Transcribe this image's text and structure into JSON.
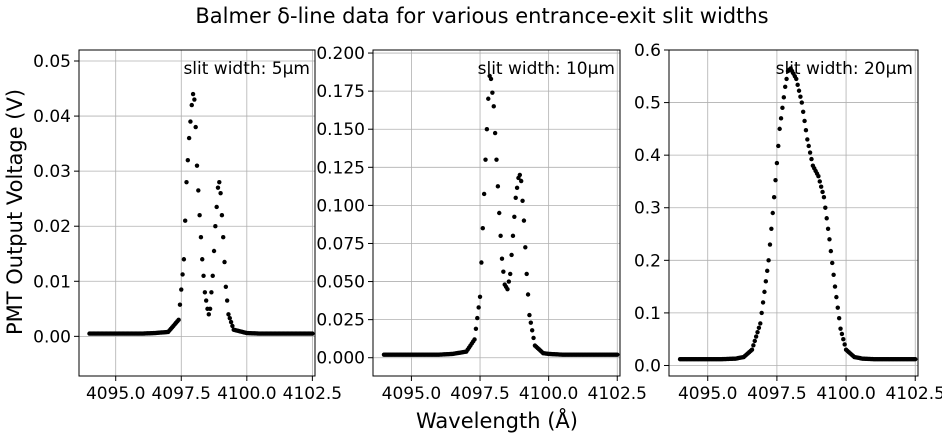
{
  "figure": {
    "title": "Balmer δ-line data for various entrance-exit slit widths",
    "xlabel": "Wavelength (Å)",
    "ylabel": "PMT Output Voltage (V)"
  },
  "colors": {
    "marker": "#000000",
    "grid": "#b0b0b0",
    "axes": "#000000"
  },
  "chart_data": [
    {
      "type": "scatter",
      "annotation": "slit width: 5μm",
      "xlim": [
        4093.6,
        4102.6
      ],
      "ylim": [
        -0.0072,
        0.052
      ],
      "xticks": [
        4095.0,
        4097.5,
        4100.0,
        4102.5
      ],
      "xtick_labels": [
        "4095.0",
        "4097.5",
        "4100.0",
        "4102.5"
      ],
      "yticks": [
        0.0,
        0.01,
        0.02,
        0.03,
        0.04,
        0.05
      ],
      "ytick_labels": [
        "0.00",
        "0.01",
        "0.02",
        "0.03",
        "0.04",
        "0.05"
      ],
      "grid": true,
      "series": [
        {
          "x": [
            4094.0,
            4094.5,
            4095.0,
            4095.5,
            4096.0,
            4096.5,
            4097.0,
            4097.4,
            4097.6,
            4097.7,
            4097.8,
            4097.9,
            4097.95,
            4098.0,
            4098.05,
            4098.1,
            4098.2,
            4098.3,
            4098.4,
            4098.5,
            4098.55,
            4098.6,
            4098.7,
            4098.8,
            4098.9,
            4098.95,
            4099.0,
            4099.1,
            4099.2,
            4099.3,
            4099.5,
            4100.0,
            4100.5,
            4101.0,
            4101.5,
            4102.0,
            4102.5
          ],
          "y": [
            0.0005,
            0.0005,
            0.0005,
            0.0005,
            0.0005,
            0.0006,
            0.0008,
            0.003,
            0.014,
            0.028,
            0.036,
            0.042,
            0.044,
            0.043,
            0.038,
            0.031,
            0.022,
            0.014,
            0.008,
            0.005,
            0.004,
            0.005,
            0.011,
            0.02,
            0.027,
            0.028,
            0.026,
            0.018,
            0.009,
            0.004,
            0.0012,
            0.0006,
            0.0005,
            0.0005,
            0.0005,
            0.0005,
            0.0005
          ]
        }
      ]
    },
    {
      "type": "scatter",
      "annotation": "slit width: 10μm",
      "xlim": [
        4093.6,
        4102.6
      ],
      "ylim": [
        -0.012,
        0.202
      ],
      "xticks": [
        4095.0,
        4097.5,
        4100.0,
        4102.5
      ],
      "xtick_labels": [
        "4095.0",
        "4097.5",
        "4100.0",
        "4102.5"
      ],
      "yticks": [
        0.0,
        0.025,
        0.05,
        0.075,
        0.1,
        0.125,
        0.15,
        0.175,
        0.2
      ],
      "ytick_labels": [
        "0.000",
        "0.025",
        "0.050",
        "0.075",
        "0.100",
        "0.125",
        "0.150",
        "0.175",
        "0.200"
      ],
      "grid": true,
      "series": [
        {
          "x": [
            4094.0,
            4094.5,
            4095.0,
            4095.5,
            4096.0,
            4096.5,
            4097.0,
            4097.3,
            4097.5,
            4097.6,
            4097.7,
            4097.8,
            4097.85,
            4097.9,
            4098.0,
            4098.1,
            4098.2,
            4098.3,
            4098.4,
            4098.5,
            4098.6,
            4098.7,
            4098.8,
            4098.9,
            4098.95,
            4099.0,
            4099.1,
            4099.2,
            4099.3,
            4099.5,
            4099.8,
            4100.0,
            4100.5,
            4101.0,
            4101.5,
            4102.0,
            4102.5
          ],
          "y": [
            0.002,
            0.002,
            0.002,
            0.002,
            0.002,
            0.0025,
            0.004,
            0.012,
            0.04,
            0.085,
            0.13,
            0.17,
            0.185,
            0.183,
            0.165,
            0.13,
            0.095,
            0.065,
            0.048,
            0.045,
            0.055,
            0.08,
            0.105,
            0.118,
            0.12,
            0.116,
            0.09,
            0.055,
            0.028,
            0.008,
            0.003,
            0.0025,
            0.002,
            0.002,
            0.002,
            0.002,
            0.002
          ]
        }
      ]
    },
    {
      "type": "scatter",
      "annotation": "slit width: 20μm",
      "xlim": [
        4093.6,
        4102.6
      ],
      "ylim": [
        -0.02,
        0.6
      ],
      "xticks": [
        4095.0,
        4097.5,
        4100.0,
        4102.5
      ],
      "xtick_labels": [
        "4095.0",
        "4097.5",
        "4100.0",
        "4102.5"
      ],
      "yticks": [
        0.0,
        0.1,
        0.2,
        0.3,
        0.4,
        0.5,
        0.6
      ],
      "ytick_labels": [
        "0.0",
        "0.1",
        "0.2",
        "0.3",
        "0.4",
        "0.5",
        "0.6"
      ],
      "grid": true,
      "series": [
        {
          "x": [
            4094.0,
            4094.5,
            4095.0,
            4095.5,
            4096.0,
            4096.3,
            4096.6,
            4096.9,
            4097.2,
            4097.4,
            4097.6,
            4097.8,
            4097.9,
            4098.0,
            4098.2,
            4098.4,
            4098.6,
            4098.8,
            4099.0,
            4099.2,
            4099.4,
            4099.6,
            4099.8,
            4100.0,
            4100.3,
            4100.6,
            4101.0,
            4101.5,
            4102.0,
            4102.5
          ],
          "y": [
            0.012,
            0.012,
            0.012,
            0.012,
            0.013,
            0.016,
            0.03,
            0.08,
            0.2,
            0.32,
            0.45,
            0.53,
            0.56,
            0.565,
            0.545,
            0.5,
            0.43,
            0.38,
            0.36,
            0.32,
            0.24,
            0.15,
            0.07,
            0.03,
            0.016,
            0.013,
            0.012,
            0.012,
            0.012,
            0.012
          ]
        }
      ]
    }
  ]
}
